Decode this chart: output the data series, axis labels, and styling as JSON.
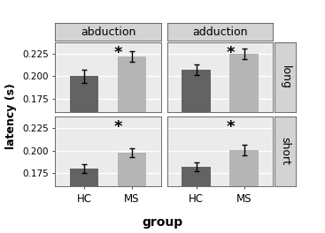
{
  "xlabel": "group",
  "ylabel": "latency (s)",
  "col_labels": [
    "abduction",
    "adduction"
  ],
  "row_labels": [
    "long",
    "short"
  ],
  "groups": [
    "HC",
    "MS"
  ],
  "bar_colors": [
    "#636363",
    "#b5b5b5"
  ],
  "ylim": [
    0.16,
    0.2385
  ],
  "yticks": [
    0.175,
    0.2,
    0.225
  ],
  "data": {
    "abduction_long": {
      "HC": {
        "mean": 0.2,
        "sem": 0.007
      },
      "MS": {
        "mean": 0.222,
        "sem": 0.006
      }
    },
    "abduction_short": {
      "HC": {
        "mean": 0.18,
        "sem": 0.005
      },
      "MS": {
        "mean": 0.198,
        "sem": 0.005
      }
    },
    "adduction_long": {
      "HC": {
        "mean": 0.207,
        "sem": 0.006
      },
      "MS": {
        "mean": 0.225,
        "sem": 0.006
      }
    },
    "adduction_short": {
      "HC": {
        "mean": 0.182,
        "sem": 0.005
      },
      "MS": {
        "mean": 0.201,
        "sem": 0.006
      }
    }
  },
  "panel_bg": "#ebebeb",
  "strip_bg": "#d3d3d3",
  "fig_bg": "#ffffff",
  "grid_color": "#ffffff"
}
